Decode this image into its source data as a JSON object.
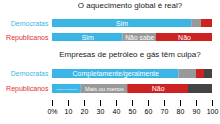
{
  "chart_data": [
    {
      "type": "bar",
      "orientation": "horizontal",
      "stacked": true,
      "title": "O aquecimento global é real?",
      "categories": [
        "Republicanos",
        "Democratas"
      ],
      "category_colors": [
        "#e03030",
        "#3ab5e5"
      ],
      "series": [
        {
          "color": "#3ab5e5",
          "values": [
            44,
            87
          ],
          "labels": [
            "Sim",
            "Sim"
          ]
        },
        {
          "color": "#999999",
          "values": [
            21,
            6
          ],
          "labels": [
            "Não sabe",
            null
          ]
        },
        {
          "color": "#cc2222",
          "values": [
            35,
            7
          ],
          "labels": [
            "Não",
            null
          ]
        }
      ],
      "xlim": [
        0,
        100
      ],
      "tick_labels": "y"
    },
    {
      "type": "bar",
      "orientation": "horizontal",
      "stacked": true,
      "title": "Empresas de petróleo e gás têm culpa?",
      "categories": [
        "Republicanos",
        "Democratas"
      ],
      "category_colors": [
        "#e03030",
        "#3ab5e5"
      ],
      "series": [
        {
          "color": "#3ab5e5",
          "values": [
            18,
            79
          ],
          "labels": [
            "complet./geralmente",
            "Completamente/geralmente"
          ]
        },
        {
          "color": "#999999",
          "values": [
            29,
            11
          ],
          "labels": [
            "Mais ou menos",
            null
          ]
        },
        {
          "color": "#cc2222",
          "values": [
            38,
            5
          ],
          "labels": [
            "Não",
            null
          ]
        },
        {
          "color": "#444444",
          "values": [
            15,
            5
          ]
        }
      ],
      "xlim": [
        0,
        100
      ],
      "xticks": [
        {
          "value": 0,
          "label": "0%"
        },
        10,
        20,
        30,
        40,
        50,
        60,
        70,
        80,
        90,
        100
      ]
    }
  ]
}
